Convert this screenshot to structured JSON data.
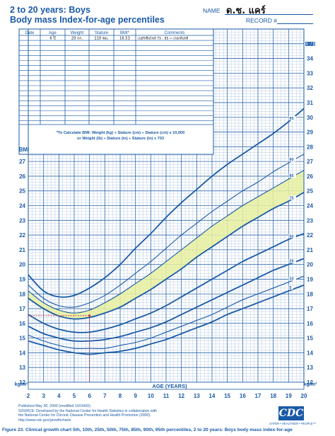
{
  "header": {
    "title_line1": "2 to 20 years: Boys",
    "title_line2": "Body mass Index-for-age percentiles",
    "name_label": "NAME",
    "name_value": "ด.ช. แคร์",
    "record_label": "RECORD #"
  },
  "record_table": {
    "columns": [
      "Date",
      "Age",
      "Weight",
      "Stature",
      "BMI*",
      "Comments"
    ],
    "rows": [
      [
        "",
        "6 ปี",
        "20 กก.",
        "110 ซม.",
        "16.53",
        "เปอร์เซ็นไทล์ 75 - 85 = เกณฑ์ปกติ"
      ]
    ]
  },
  "formula": {
    "line1": "*To Calculate BMI: Weight (kg) ÷ Stature (cm) ÷ Stature (cm) x 10,000",
    "line2": "or Weight (lb) ÷ Stature (in) ÷ Stature (in) x 703"
  },
  "chart_data": {
    "type": "line",
    "xlabel": "AGE (YEARS)",
    "ylabel": "BMI",
    "yunit": "kg/m²",
    "xlim": [
      2,
      20
    ],
    "ylim_left": [
      12,
      27
    ],
    "ylim_right": [
      12,
      35
    ],
    "x_ticks": [
      2,
      3,
      4,
      5,
      6,
      7,
      8,
      9,
      10,
      11,
      12,
      13,
      14,
      15,
      16,
      17,
      18,
      19,
      20
    ],
    "y_ticks_left": [
      12,
      13,
      14,
      15,
      16,
      17,
      18,
      19,
      20,
      21,
      22,
      23,
      24,
      25,
      26,
      27
    ],
    "y_ticks_right": [
      12,
      13,
      14,
      15,
      16,
      17,
      18,
      19,
      20,
      21,
      22,
      23,
      24,
      25,
      26,
      27,
      28,
      29,
      30,
      31,
      32,
      33,
      34,
      35
    ],
    "grid": true,
    "x": [
      2,
      3,
      4,
      5,
      6,
      7,
      8,
      9,
      10,
      11,
      12,
      13,
      14,
      15,
      16,
      17,
      18,
      19,
      20
    ],
    "series": [
      {
        "name": "95",
        "values": [
          19.3,
          18.2,
          17.8,
          17.9,
          18.4,
          19.1,
          20.0,
          21.1,
          22.1,
          23.2,
          24.2,
          25.1,
          26.0,
          26.8,
          27.5,
          28.2,
          28.9,
          29.7,
          30.6
        ]
      },
      {
        "name": "90",
        "values": [
          18.6,
          17.7,
          17.2,
          17.1,
          17.4,
          17.9,
          18.6,
          19.4,
          20.2,
          21.1,
          22.0,
          22.8,
          23.6,
          24.3,
          25.0,
          25.6,
          26.3,
          26.9,
          27.5
        ]
      },
      {
        "name": "85",
        "values": [
          18.2,
          17.4,
          16.9,
          16.7,
          16.9,
          17.4,
          18.0,
          18.7,
          19.4,
          20.2,
          21.0,
          21.8,
          22.6,
          23.3,
          24.0,
          24.6,
          25.2,
          25.8,
          26.4
        ]
      },
      {
        "name": "75",
        "values": [
          17.7,
          17.0,
          16.5,
          16.3,
          16.4,
          16.7,
          17.1,
          17.7,
          18.3,
          19.0,
          19.7,
          20.5,
          21.2,
          21.9,
          22.6,
          23.2,
          23.8,
          24.3,
          24.9
        ]
      },
      {
        "name": "50",
        "values": [
          16.6,
          16.0,
          15.6,
          15.4,
          15.4,
          15.6,
          15.9,
          16.3,
          16.7,
          17.2,
          17.8,
          18.4,
          19.0,
          19.6,
          20.2,
          20.7,
          21.2,
          21.7,
          22.1
        ]
      },
      {
        "name": "25",
        "values": [
          15.8,
          15.3,
          15.0,
          14.8,
          14.8,
          14.9,
          15.1,
          15.4,
          15.7,
          16.1,
          16.6,
          17.1,
          17.6,
          18.1,
          18.6,
          19.1,
          19.6,
          20.0,
          20.4
        ]
      },
      {
        "name": "10",
        "values": [
          15.2,
          14.8,
          14.5,
          14.3,
          14.3,
          14.3,
          14.5,
          14.7,
          15.0,
          15.4,
          15.8,
          16.2,
          16.6,
          17.1,
          17.6,
          18.0,
          18.4,
          18.8,
          19.2
        ]
      },
      {
        "name": "5",
        "values": [
          14.8,
          14.5,
          14.2,
          14.0,
          13.9,
          14.0,
          14.1,
          14.3,
          14.6,
          14.9,
          15.3,
          15.7,
          16.1,
          16.6,
          17.0,
          17.4,
          17.8,
          18.2,
          18.6
        ]
      }
    ],
    "shaded_band": [
      "75",
      "85"
    ],
    "plotted_point": {
      "age": 6,
      "bmi": 16.53
    }
  },
  "footer": {
    "line1": "Published May 30, 2000 (modified 10/16/00).",
    "line2": "SOURCE: Developed by the National Center for Health Statistics in collaboration with",
    "line3": "the National Center for Chronic Disease Prevention and Health Promotion (2000).",
    "line4": "http://www.cdc.gov/growthcharts",
    "logo_text": "CDC",
    "logo_tagline": "SAFER • HEALTHIER • PEOPLE™",
    "caption": "Figure 23. Clinical growth chart 5th, 10th, 25th, 50th, 75th, 85th, 90th, 95th percentiles, 2 to 20 years: Boys body mass index-for-age"
  },
  "colors": {
    "blue": "#1a5aa6",
    "band": "#e8f0a0",
    "point_line": "#c0394a"
  }
}
